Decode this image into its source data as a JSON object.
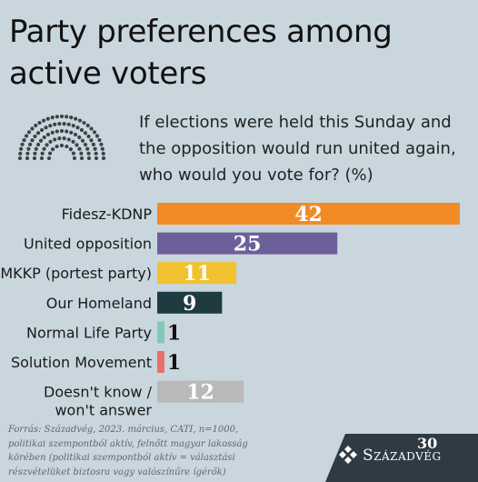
{
  "header": {
    "title": "Party preferences among active voters",
    "question": "If elections were held this Sunday and the opposition would run united again, who would you vote for? (%)"
  },
  "chart_data": {
    "type": "bar",
    "orientation": "horizontal",
    "title": "Party preferences among active voters",
    "subtitle": "If elections were held this Sunday and the opposition would run united again, who would you vote for? (%)",
    "xlim": [
      0,
      42
    ],
    "grid": false,
    "categories": [
      "Fidesz-KDNP",
      "United opposition",
      "MKKP (portest party)",
      "Our Homeland",
      "Normal Life Party",
      "Solution Movement",
      "Doesn't know /|won't answer"
    ],
    "values": [
      42,
      25,
      11,
      9,
      1,
      1,
      12
    ],
    "colors": [
      "#f28b25",
      "#6c5f9a",
      "#f0c230",
      "#1e3b42",
      "#7fc8ba",
      "#e8706b",
      "#b9b9b9"
    ]
  },
  "footer": {
    "source_lines": [
      "Forrás: Századvég, 2023. március, CATI, n=1000,",
      "politikai szempontból aktív, felnőtt magyar lakosság",
      "körében (politikai szempontból aktív = választási",
      "részvételüket biztosra vagy valószínűre ígérők)"
    ],
    "brand": "Századvég",
    "anniversary": "30"
  },
  "icons": {
    "parliament": "parliament-hemicycle-icon",
    "logo": "szazadveg-logo-icon"
  }
}
